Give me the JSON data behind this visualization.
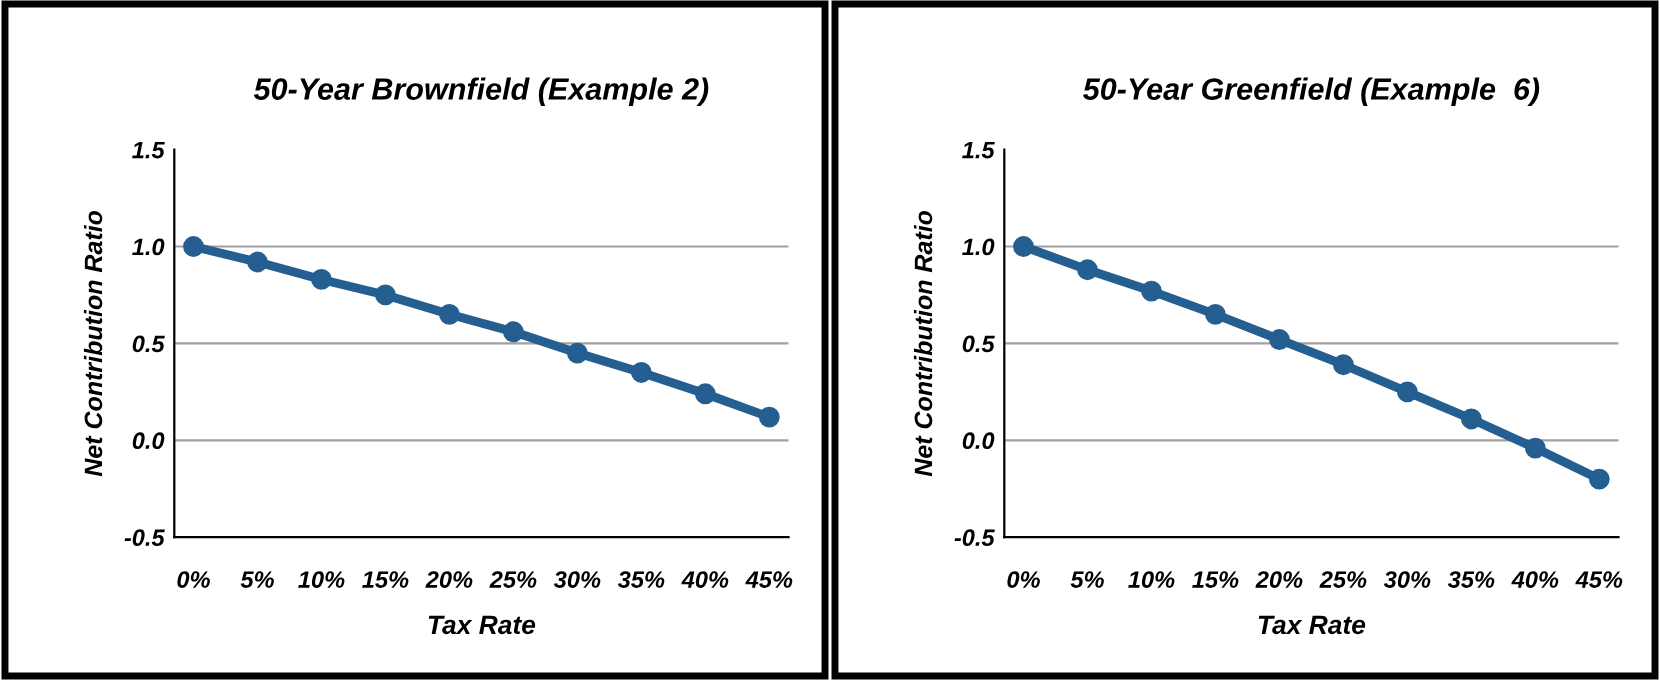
{
  "chart_data": [
    {
      "type": "line",
      "title": "50-Year Brownfield (Example 2)",
      "xlabel": "Tax Rate",
      "ylabel": "Net Contribution Ratio",
      "categories": [
        "0%",
        "5%",
        "10%",
        "15%",
        "20%",
        "25%",
        "30%",
        "35%",
        "40%",
        "45%"
      ],
      "series": [
        {
          "color": "#255e91",
          "values": [
            1.0,
            0.92,
            0.83,
            0.75,
            0.65,
            0.56,
            0.45,
            0.35,
            0.24,
            0.12
          ]
        }
      ],
      "ylim": [
        -0.5,
        1.5
      ],
      "yticks": [
        {
          "value": -0.5,
          "label": "-0.5"
        },
        {
          "value": 0,
          "label": "0.0"
        },
        {
          "value": 0.5,
          "label": "0.5"
        },
        {
          "value": 1,
          "label": "1.0"
        },
        {
          "value": 1.5,
          "label": "1.5"
        }
      ],
      "grid": "y",
      "marker": "circle",
      "line_style": "solid"
    },
    {
      "type": "line",
      "title": "50-Year Greenfield (Example  6)",
      "xlabel": "Tax Rate",
      "ylabel": "Net Contribution Ratio",
      "categories": [
        "0%",
        "5%",
        "10%",
        "15%",
        "20%",
        "25%",
        "30%",
        "35%",
        "40%",
        "45%"
      ],
      "series": [
        {
          "color": "#255e91",
          "values": [
            1.0,
            0.88,
            0.77,
            0.65,
            0.52,
            0.39,
            0.25,
            0.11,
            -0.04,
            -0.2
          ]
        }
      ],
      "ylim": [
        -0.5,
        1.5
      ],
      "yticks": [
        {
          "value": -0.5,
          "label": "-0.5"
        },
        {
          "value": 0,
          "label": "0.0"
        },
        {
          "value": 0.5,
          "label": "0.5"
        },
        {
          "value": 1,
          "label": "1.0"
        },
        {
          "value": 1.5,
          "label": "1.5"
        }
      ],
      "grid": "y",
      "marker": "circle",
      "line_style": "solid"
    }
  ]
}
